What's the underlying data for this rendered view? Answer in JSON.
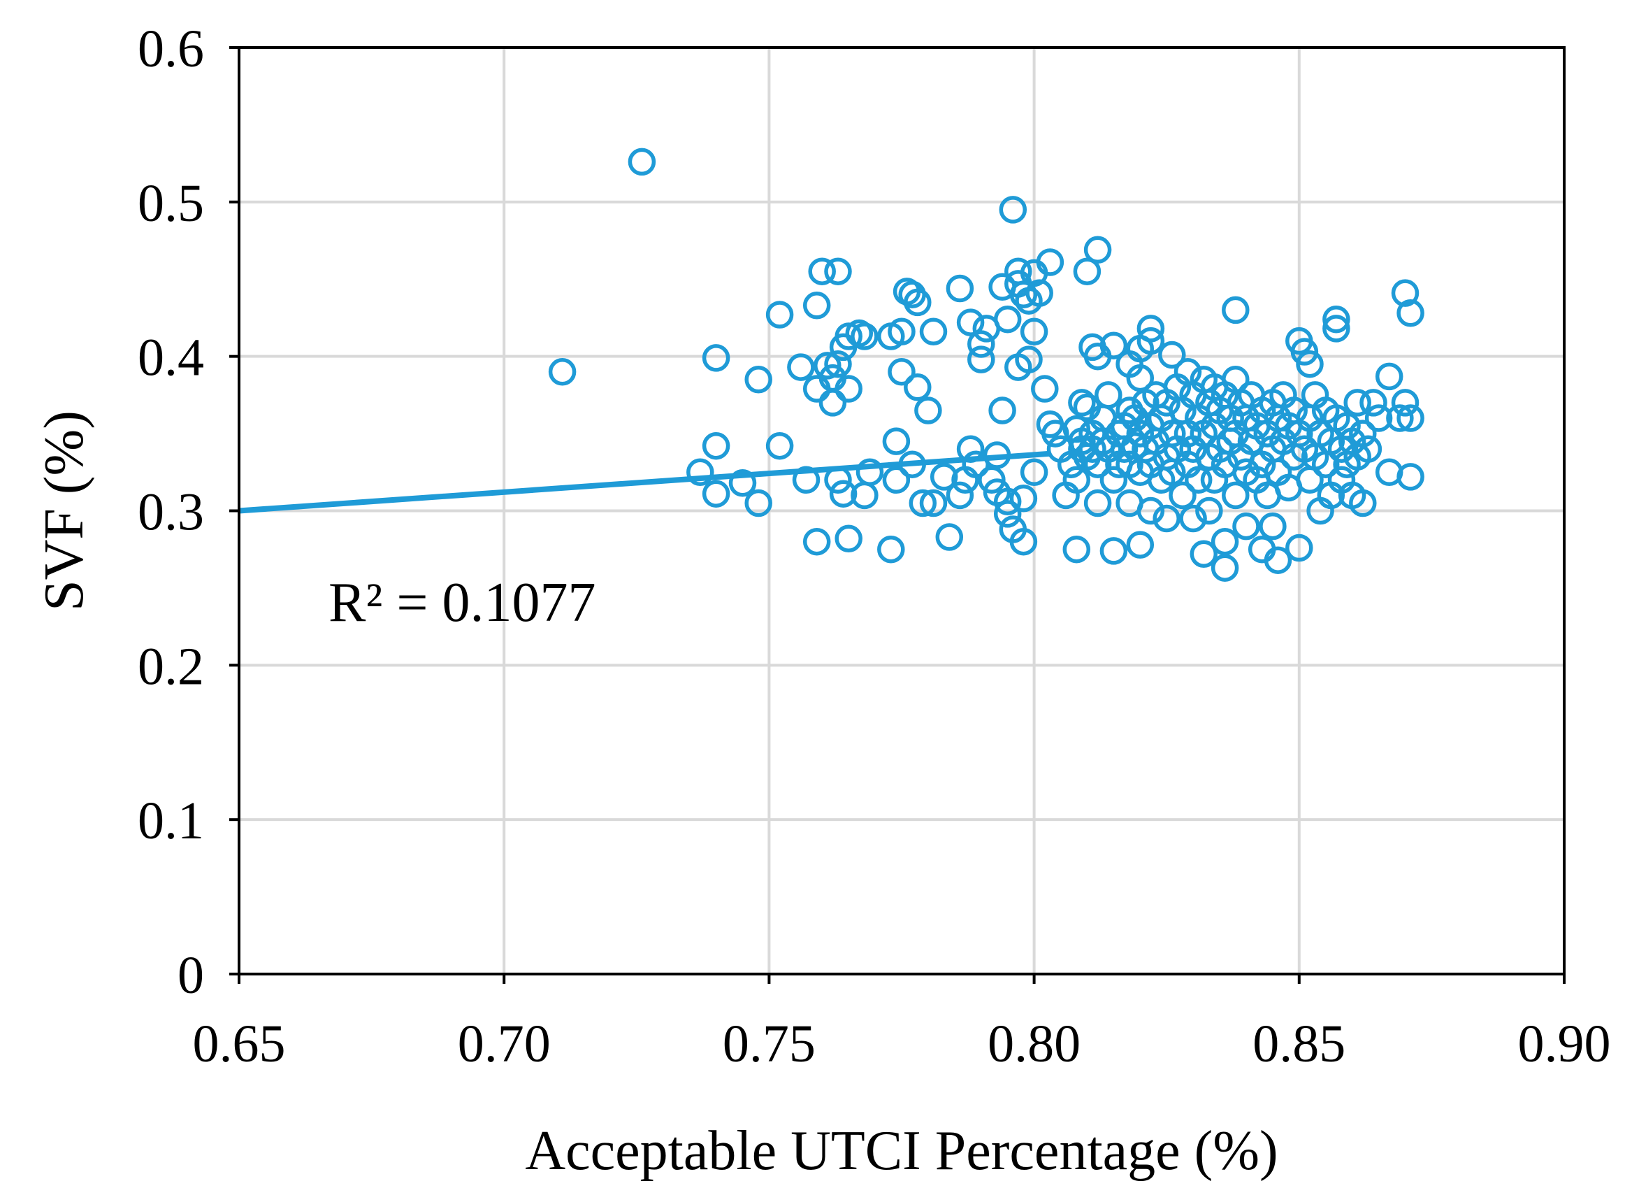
{
  "chart_data": {
    "type": "scatter",
    "title": "",
    "xlabel": "Acceptable UTCI Percentage (%)",
    "ylabel": "SVF (%)",
    "xlim": [
      0.65,
      0.9
    ],
    "ylim": [
      0,
      0.6
    ],
    "x_ticks": [
      "0.65",
      "0.70",
      "0.75",
      "0.80",
      "0.85",
      "0.90"
    ],
    "y_ticks": [
      "0",
      "0.1",
      "0.2",
      "0.3",
      "0.4",
      "0.5",
      "0.6"
    ],
    "grid": true,
    "marker": "open-circle",
    "color": "#1f9bd7",
    "annotation": "R² = 0.1077",
    "trendline": {
      "x": [
        0.65,
        0.803
      ],
      "y": [
        0.3,
        0.337
      ]
    },
    "points": [
      [
        0.711,
        0.39
      ],
      [
        0.726,
        0.526
      ],
      [
        0.737,
        0.325
      ],
      [
        0.74,
        0.399
      ],
      [
        0.74,
        0.342
      ],
      [
        0.74,
        0.311
      ],
      [
        0.745,
        0.318
      ],
      [
        0.748,
        0.385
      ],
      [
        0.748,
        0.305
      ],
      [
        0.752,
        0.342
      ],
      [
        0.752,
        0.427
      ],
      [
        0.756,
        0.393
      ],
      [
        0.757,
        0.32
      ],
      [
        0.759,
        0.433
      ],
      [
        0.759,
        0.379
      ],
      [
        0.759,
        0.28
      ],
      [
        0.76,
        0.455
      ],
      [
        0.761,
        0.394
      ],
      [
        0.762,
        0.386
      ],
      [
        0.762,
        0.37
      ],
      [
        0.763,
        0.455
      ],
      [
        0.763,
        0.395
      ],
      [
        0.763,
        0.32
      ],
      [
        0.764,
        0.406
      ],
      [
        0.764,
        0.311
      ],
      [
        0.765,
        0.413
      ],
      [
        0.765,
        0.379
      ],
      [
        0.765,
        0.282
      ],
      [
        0.767,
        0.415
      ],
      [
        0.768,
        0.413
      ],
      [
        0.768,
        0.31
      ],
      [
        0.769,
        0.325
      ],
      [
        0.773,
        0.413
      ],
      [
        0.773,
        0.275
      ],
      [
        0.774,
        0.345
      ],
      [
        0.774,
        0.32
      ],
      [
        0.775,
        0.416
      ],
      [
        0.775,
        0.39
      ],
      [
        0.776,
        0.442
      ],
      [
        0.777,
        0.44
      ],
      [
        0.777,
        0.33
      ],
      [
        0.778,
        0.435
      ],
      [
        0.778,
        0.38
      ],
      [
        0.779,
        0.305
      ],
      [
        0.78,
        0.365
      ],
      [
        0.781,
        0.416
      ],
      [
        0.781,
        0.305
      ],
      [
        0.783,
        0.322
      ],
      [
        0.784,
        0.283
      ],
      [
        0.786,
        0.444
      ],
      [
        0.786,
        0.31
      ],
      [
        0.787,
        0.32
      ],
      [
        0.788,
        0.422
      ],
      [
        0.788,
        0.34
      ],
      [
        0.789,
        0.33
      ],
      [
        0.79,
        0.408
      ],
      [
        0.79,
        0.398
      ],
      [
        0.791,
        0.418
      ],
      [
        0.792,
        0.32
      ],
      [
        0.793,
        0.336
      ],
      [
        0.793,
        0.312
      ],
      [
        0.794,
        0.445
      ],
      [
        0.794,
        0.365
      ],
      [
        0.795,
        0.424
      ],
      [
        0.795,
        0.306
      ],
      [
        0.795,
        0.298
      ],
      [
        0.796,
        0.495
      ],
      [
        0.796,
        0.288
      ],
      [
        0.797,
        0.455
      ],
      [
        0.797,
        0.447
      ],
      [
        0.797,
        0.393
      ],
      [
        0.798,
        0.44
      ],
      [
        0.798,
        0.308
      ],
      [
        0.798,
        0.28
      ],
      [
        0.799,
        0.436
      ],
      [
        0.799,
        0.398
      ],
      [
        0.8,
        0.454
      ],
      [
        0.8,
        0.416
      ],
      [
        0.8,
        0.325
      ],
      [
        0.801,
        0.441
      ],
      [
        0.802,
        0.379
      ],
      [
        0.803,
        0.461
      ],
      [
        0.803,
        0.356
      ],
      [
        0.804,
        0.35
      ],
      [
        0.805,
        0.34
      ],
      [
        0.806,
        0.31
      ],
      [
        0.807,
        0.33
      ],
      [
        0.808,
        0.353
      ],
      [
        0.808,
        0.32
      ],
      [
        0.808,
        0.275
      ],
      [
        0.809,
        0.37
      ],
      [
        0.809,
        0.345
      ],
      [
        0.809,
        0.34
      ],
      [
        0.81,
        0.367
      ],
      [
        0.81,
        0.335
      ],
      [
        0.81,
        0.455
      ],
      [
        0.811,
        0.406
      ],
      [
        0.811,
        0.35
      ],
      [
        0.811,
        0.34
      ],
      [
        0.812,
        0.469
      ],
      [
        0.812,
        0.4
      ],
      [
        0.812,
        0.33
      ],
      [
        0.812,
        0.305
      ],
      [
        0.813,
        0.36
      ],
      [
        0.813,
        0.345
      ],
      [
        0.814,
        0.375
      ],
      [
        0.814,
        0.34
      ],
      [
        0.815,
        0.407
      ],
      [
        0.815,
        0.32
      ],
      [
        0.815,
        0.274
      ],
      [
        0.816,
        0.35
      ],
      [
        0.816,
        0.33
      ],
      [
        0.817,
        0.355
      ],
      [
        0.817,
        0.34
      ],
      [
        0.818,
        0.395
      ],
      [
        0.818,
        0.365
      ],
      [
        0.818,
        0.33
      ],
      [
        0.818,
        0.305
      ],
      [
        0.819,
        0.36
      ],
      [
        0.819,
        0.342
      ],
      [
        0.82,
        0.405
      ],
      [
        0.82,
        0.386
      ],
      [
        0.82,
        0.35
      ],
      [
        0.82,
        0.325
      ],
      [
        0.82,
        0.278
      ],
      [
        0.821,
        0.37
      ],
      [
        0.821,
        0.34
      ],
      [
        0.822,
        0.418
      ],
      [
        0.822,
        0.41
      ],
      [
        0.822,
        0.355
      ],
      [
        0.822,
        0.33
      ],
      [
        0.822,
        0.3
      ],
      [
        0.823,
        0.375
      ],
      [
        0.823,
        0.345
      ],
      [
        0.824,
        0.36
      ],
      [
        0.824,
        0.32
      ],
      [
        0.825,
        0.37
      ],
      [
        0.825,
        0.335
      ],
      [
        0.825,
        0.295
      ],
      [
        0.826,
        0.401
      ],
      [
        0.826,
        0.35
      ],
      [
        0.826,
        0.325
      ],
      [
        0.827,
        0.38
      ],
      [
        0.827,
        0.34
      ],
      [
        0.828,
        0.365
      ],
      [
        0.828,
        0.31
      ],
      [
        0.829,
        0.39
      ],
      [
        0.829,
        0.35
      ],
      [
        0.829,
        0.33
      ],
      [
        0.83,
        0.375
      ],
      [
        0.83,
        0.34
      ],
      [
        0.83,
        0.295
      ],
      [
        0.831,
        0.36
      ],
      [
        0.831,
        0.32
      ],
      [
        0.832,
        0.385
      ],
      [
        0.832,
        0.35
      ],
      [
        0.832,
        0.272
      ],
      [
        0.833,
        0.37
      ],
      [
        0.833,
        0.335
      ],
      [
        0.833,
        0.3
      ],
      [
        0.834,
        0.38
      ],
      [
        0.834,
        0.355
      ],
      [
        0.834,
        0.32
      ],
      [
        0.835,
        0.365
      ],
      [
        0.835,
        0.34
      ],
      [
        0.836,
        0.375
      ],
      [
        0.836,
        0.33
      ],
      [
        0.836,
        0.28
      ],
      [
        0.836,
        0.263
      ],
      [
        0.837,
        0.36
      ],
      [
        0.837,
        0.345
      ],
      [
        0.838,
        0.43
      ],
      [
        0.838,
        0.385
      ],
      [
        0.838,
        0.35
      ],
      [
        0.838,
        0.31
      ],
      [
        0.839,
        0.37
      ],
      [
        0.839,
        0.335
      ],
      [
        0.84,
        0.36
      ],
      [
        0.84,
        0.325
      ],
      [
        0.84,
        0.29
      ],
      [
        0.841,
        0.375
      ],
      [
        0.841,
        0.345
      ],
      [
        0.842,
        0.355
      ],
      [
        0.842,
        0.32
      ],
      [
        0.843,
        0.365
      ],
      [
        0.843,
        0.33
      ],
      [
        0.843,
        0.275
      ],
      [
        0.844,
        0.35
      ],
      [
        0.844,
        0.31
      ],
      [
        0.845,
        0.37
      ],
      [
        0.845,
        0.34
      ],
      [
        0.845,
        0.29
      ],
      [
        0.846,
        0.36
      ],
      [
        0.846,
        0.325
      ],
      [
        0.846,
        0.268
      ],
      [
        0.847,
        0.375
      ],
      [
        0.847,
        0.345
      ],
      [
        0.848,
        0.355
      ],
      [
        0.848,
        0.315
      ],
      [
        0.849,
        0.365
      ],
      [
        0.849,
        0.335
      ],
      [
        0.85,
        0.41
      ],
      [
        0.85,
        0.35
      ],
      [
        0.85,
        0.276
      ],
      [
        0.851,
        0.403
      ],
      [
        0.851,
        0.34
      ],
      [
        0.852,
        0.395
      ],
      [
        0.852,
        0.36
      ],
      [
        0.852,
        0.32
      ],
      [
        0.853,
        0.375
      ],
      [
        0.853,
        0.335
      ],
      [
        0.854,
        0.35
      ],
      [
        0.854,
        0.3
      ],
      [
        0.855,
        0.365
      ],
      [
        0.855,
        0.33
      ],
      [
        0.856,
        0.345
      ],
      [
        0.856,
        0.31
      ],
      [
        0.857,
        0.424
      ],
      [
        0.857,
        0.418
      ],
      [
        0.857,
        0.36
      ],
      [
        0.858,
        0.34
      ],
      [
        0.858,
        0.32
      ],
      [
        0.859,
        0.355
      ],
      [
        0.859,
        0.33
      ],
      [
        0.86,
        0.345
      ],
      [
        0.86,
        0.31
      ],
      [
        0.861,
        0.37
      ],
      [
        0.861,
        0.335
      ],
      [
        0.862,
        0.35
      ],
      [
        0.862,
        0.305
      ],
      [
        0.863,
        0.34
      ],
      [
        0.864,
        0.37
      ],
      [
        0.865,
        0.36
      ],
      [
        0.867,
        0.387
      ],
      [
        0.867,
        0.325
      ],
      [
        0.869,
        0.36
      ],
      [
        0.87,
        0.441
      ],
      [
        0.87,
        0.37
      ],
      [
        0.871,
        0.428
      ],
      [
        0.871,
        0.36
      ],
      [
        0.871,
        0.322
      ]
    ]
  }
}
